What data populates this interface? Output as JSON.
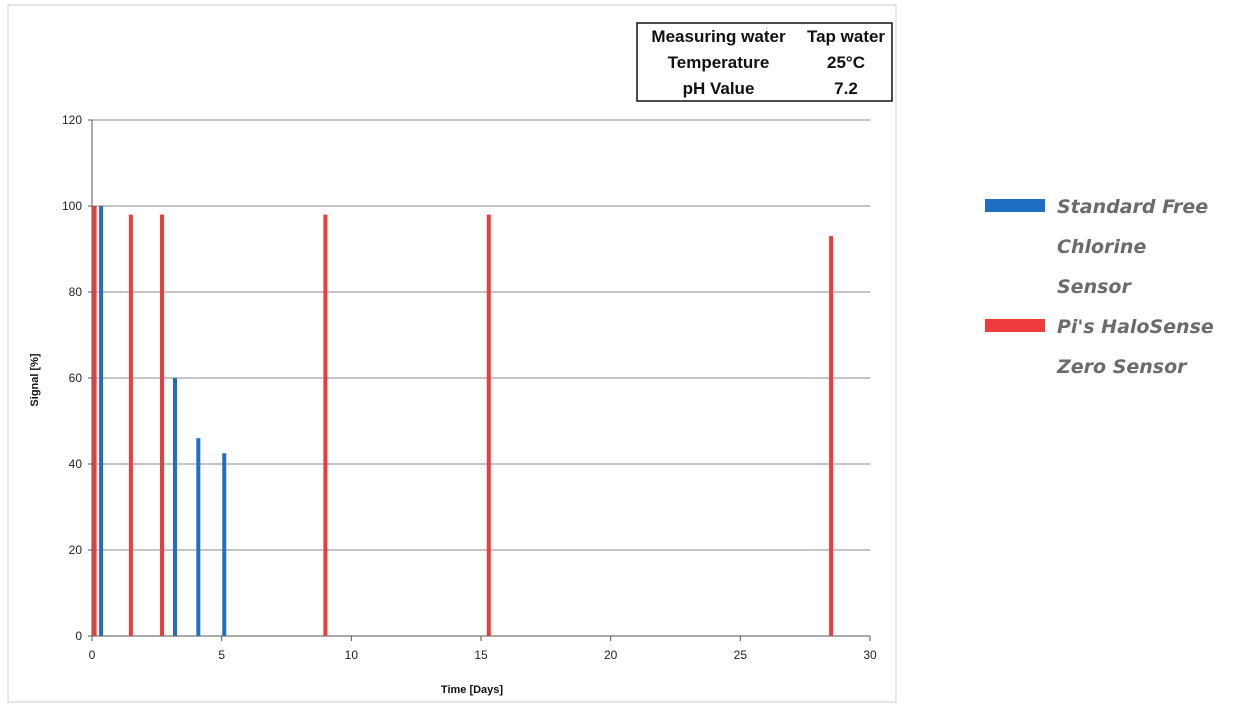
{
  "chart_data": {
    "type": "bar",
    "title": "",
    "xlabel": "Time [Days]",
    "ylabel": "Signal [%]",
    "xlim": [
      0,
      30
    ],
    "ylim": [
      0,
      120
    ],
    "x_ticks": [
      "0",
      "5",
      "10",
      "15",
      "20",
      "25",
      "30"
    ],
    "y_ticks": [
      "0",
      "20",
      "40",
      "60",
      "80",
      "100",
      "120"
    ],
    "grid": "horizontal",
    "legend_position": "right",
    "series": [
      {
        "name": "Standard Free Chlorine Sensor",
        "legend_lines": [
          "Standard Free",
          "Chlorine",
          "Sensor"
        ],
        "color": "#1f6fc5",
        "points": [
          {
            "x": 0.35,
            "y": 100
          },
          {
            "x": 3.2,
            "y": 60
          },
          {
            "x": 4.1,
            "y": 46
          },
          {
            "x": 5.1,
            "y": 42.5
          }
        ]
      },
      {
        "name": "Pi's HaloSense Zero Sensor",
        "legend_lines": [
          "Pi's HaloSense",
          "Zero Sensor"
        ],
        "color": "#ee3b3b",
        "points": [
          {
            "x": 0.1,
            "y": 100
          },
          {
            "x": 1.5,
            "y": 98
          },
          {
            "x": 2.7,
            "y": 98
          },
          {
            "x": 9.0,
            "y": 98
          },
          {
            "x": 15.3,
            "y": 98
          },
          {
            "x": 28.5,
            "y": 93
          }
        ]
      }
    ]
  },
  "info_table": {
    "rows": [
      [
        "Measuring water",
        "Tap water"
      ],
      [
        "Temperature",
        "25°C"
      ],
      [
        "pH Value",
        "7.2"
      ]
    ]
  }
}
